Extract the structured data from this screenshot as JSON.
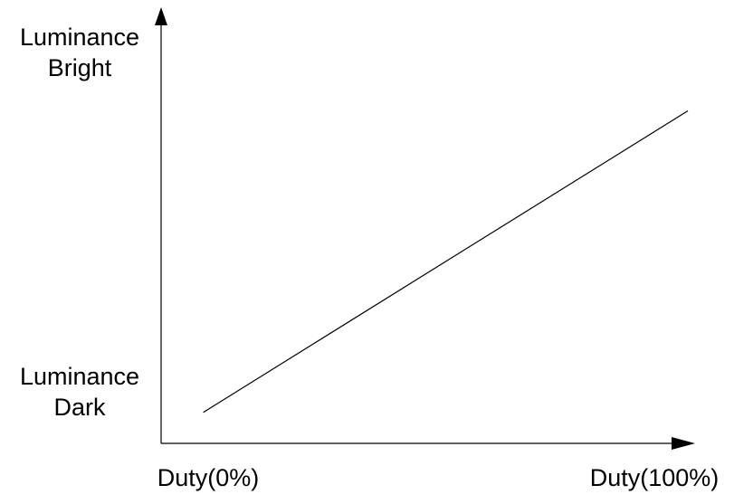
{
  "chart_data": {
    "type": "line",
    "title": "",
    "xlabel": "",
    "ylabel": "",
    "x_tick_labels": [
      "Duty(0%)",
      "Duty(100%)"
    ],
    "y_tick_labels": [
      "Luminance Dark",
      "Luminance Bright"
    ],
    "y_tick_lines": [
      [
        "Luminance",
        "Dark"
      ],
      [
        "Luminance",
        "Bright"
      ]
    ],
    "xlim": [
      0,
      100
    ],
    "ylim": [
      0,
      100
    ],
    "grid": false,
    "series": [
      {
        "x": [
          8,
          100
        ],
        "y": [
          7,
          75
        ]
      }
    ],
    "colors": {
      "axis": "#000000",
      "line": "#000000",
      "background": "#ffffff"
    }
  }
}
